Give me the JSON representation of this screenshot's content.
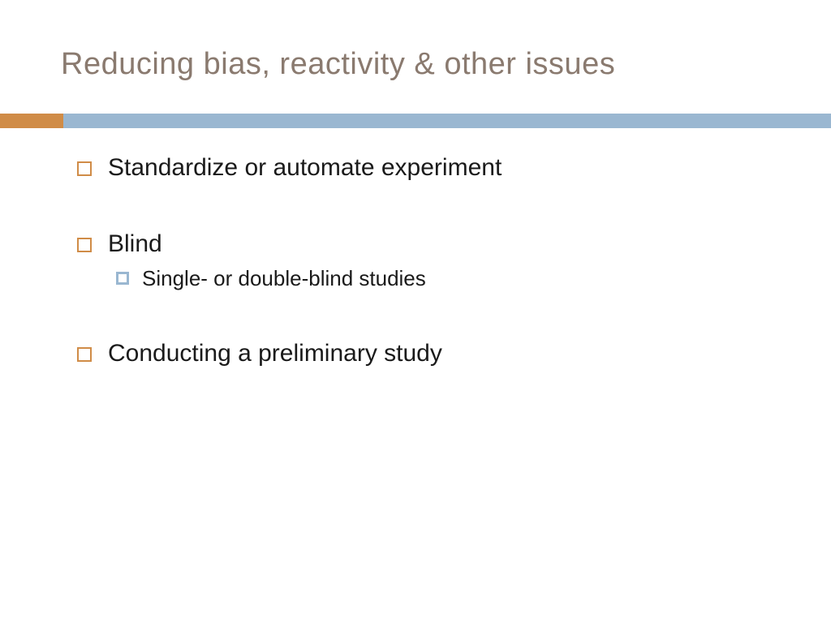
{
  "title": {
    "text": "Reducing bias, reactivity & other issues",
    "color": "#8a7a6f",
    "fontsize": 38
  },
  "divider": {
    "accent_color": "#d08c47",
    "accent_width": 78,
    "bar_color": "#9ab7d1",
    "height": 18
  },
  "bullets": {
    "l1_box_color": "#d08c47",
    "l2_box_color": "#9ab7d1",
    "text_color": "#1a1a1a",
    "items": [
      {
        "level": 1,
        "text": "Standardize or automate experiment"
      },
      {
        "level": 0,
        "gap": "large"
      },
      {
        "level": 1,
        "text": "Blind"
      },
      {
        "level": 2,
        "text": "Single- or double-blind studies"
      },
      {
        "level": 0,
        "gap": "large"
      },
      {
        "level": 1,
        "text": "Conducting a preliminary study"
      }
    ]
  },
  "background_color": "#ffffff"
}
